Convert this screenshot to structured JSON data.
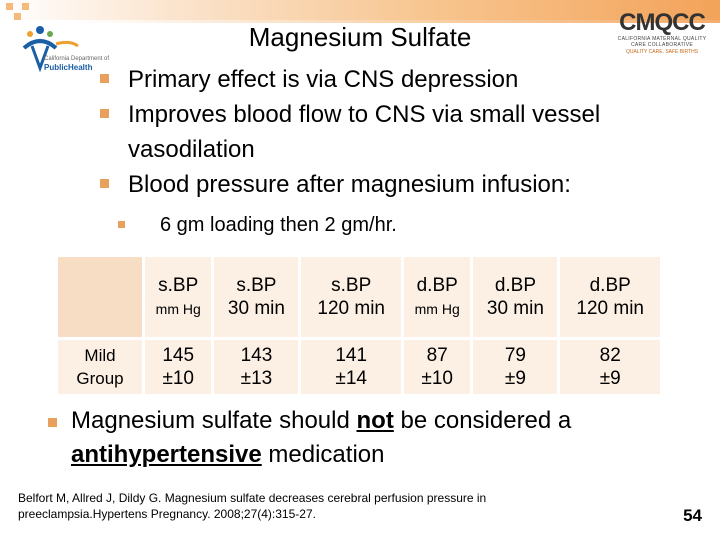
{
  "title": "Magnesium Sulfate",
  "logos": {
    "left": {
      "caption": "California Department of",
      "name": "PublicHealth"
    },
    "right": {
      "name": "CMQCC",
      "subtitle": "CALIFORNIA MATERNAL QUALITY CARE COLLABORATIVE",
      "tagline": "QUALITY CARE. SAFE BIRTHS"
    }
  },
  "bullets": [
    "Primary effect is via CNS depression",
    "Improves blood flow to CNS via small vessel vasodilation",
    "Blood pressure after magnesium infusion:"
  ],
  "sub_bullet": "6 gm loading then 2 gm/hr.",
  "table": {
    "headers": [
      {
        "line1": "s.BP",
        "line2": "mm Hg",
        "small": true
      },
      {
        "line1": "s.BP",
        "line2": "30 min",
        "small": false
      },
      {
        "line1": "s.BP",
        "line2": "120 min",
        "small": false
      },
      {
        "line1": "d.BP",
        "line2": "mm Hg",
        "small": true
      },
      {
        "line1": "d.BP",
        "line2": "30 min",
        "small": false
      },
      {
        "line1": "d.BP",
        "line2": "120 min",
        "small": false
      }
    ],
    "row_label_line1": "Mild",
    "row_label_line2": "Group",
    "values": [
      {
        "v": "145",
        "sd": "±10"
      },
      {
        "v": "143",
        "sd": "±13"
      },
      {
        "v": "141",
        "sd": "±14"
      },
      {
        "v": "87",
        "sd": "±10"
      },
      {
        "v": "79",
        "sd": "±9"
      },
      {
        "v": "82",
        "sd": "±9"
      }
    ]
  },
  "final": {
    "part1": "Magnesium sulfate should ",
    "emph1": "not",
    "part2": " be considered a ",
    "emph2": "antihypertensive",
    "part3": " medication"
  },
  "reference": "Belfort M, Allred J, Dildy G. Magnesium sulfate decreases cerebral perfusion pressure in preeclampsia.Hypertens Pregnancy. 2008;27(4):315-27.",
  "page_number": "54",
  "colors": {
    "bullet": "#e8a15c",
    "table_fill": "#fcefe3",
    "table_corner": "#f6ddc4",
    "logo_blue": "#1a5ea5"
  }
}
